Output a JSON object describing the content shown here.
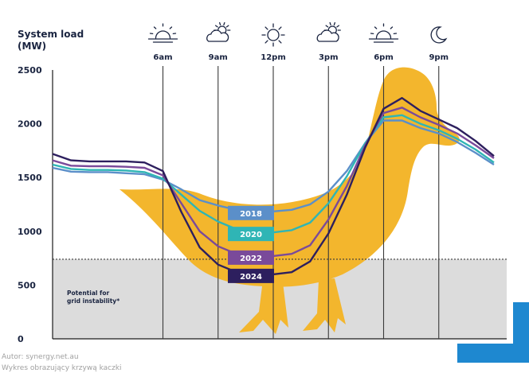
{
  "chart_data": {
    "type": "line",
    "ylabel_line1": "System load",
    "ylabel_line2": "(MW)",
    "ylim": [
      0,
      2500
    ],
    "yticks": [
      0,
      500,
      1000,
      1500,
      2000,
      2500
    ],
    "x_range": [
      0,
      24
    ],
    "time_markers": [
      {
        "hour": 6,
        "label": "6am",
        "icon": "sunrise-icon"
      },
      {
        "hour": 9,
        "label": "9am",
        "icon": "sun-behind-cloud-icon"
      },
      {
        "hour": 12,
        "label": "12pm",
        "icon": "sun-icon"
      },
      {
        "hour": 15,
        "label": "3pm",
        "icon": "sun-behind-cloud-icon"
      },
      {
        "hour": 18,
        "label": "6pm",
        "icon": "sunset-icon"
      },
      {
        "hour": 21,
        "label": "9pm",
        "icon": "moon-icon"
      }
    ],
    "x": [
      0,
      1,
      2,
      3,
      4,
      5,
      6,
      7,
      8,
      9,
      10,
      11,
      12,
      13,
      14,
      15,
      16,
      17,
      18,
      19,
      20,
      21,
      22,
      23,
      24
    ],
    "series": [
      {
        "name": "2018",
        "color": "#5b8fc9",
        "values": [
          1590,
          1555,
          1550,
          1550,
          1540,
          1530,
          1480,
          1390,
          1290,
          1240,
          1200,
          1180,
          1185,
          1200,
          1250,
          1370,
          1560,
          1820,
          2030,
          2030,
          1960,
          1910,
          1830,
          1730,
          1620
        ]
      },
      {
        "name": "2020",
        "color": "#2fb5b5",
        "values": [
          1620,
          1580,
          1570,
          1570,
          1565,
          1550,
          1490,
          1340,
          1190,
          1090,
          1020,
          990,
          990,
          1010,
          1080,
          1260,
          1510,
          1820,
          2060,
          2080,
          2000,
          1940,
          1860,
          1760,
          1640
        ]
      },
      {
        "name": "2022",
        "color": "#7a4a9a",
        "values": [
          1660,
          1610,
          1605,
          1605,
          1600,
          1590,
          1520,
          1260,
          1000,
          860,
          790,
          770,
          770,
          790,
          870,
          1110,
          1420,
          1800,
          2100,
          2150,
          2060,
          1990,
          1910,
          1800,
          1680
        ]
      },
      {
        "name": "2024",
        "color": "#2d1f5e",
        "values": [
          1720,
          1660,
          1650,
          1650,
          1650,
          1640,
          1560,
          1180,
          850,
          690,
          620,
          600,
          600,
          620,
          720,
          980,
          1340,
          1780,
          2140,
          2240,
          2120,
          2040,
          1960,
          1840,
          1700
        ]
      }
    ],
    "instability_threshold": 740,
    "instability_label_line1": "Potential for",
    "instability_label_line2": "grid instability*",
    "grid": false
  },
  "source_line1": "Autor: synergy.net.au",
  "source_line2": "Wykres obrazujący krzywą kaczki",
  "colors": {
    "duck": "#f3b62d",
    "shade": "#dcdcdc",
    "threshold": "#3a3a3a",
    "accent": "#1e88d0",
    "label_text": "#1a2440"
  }
}
